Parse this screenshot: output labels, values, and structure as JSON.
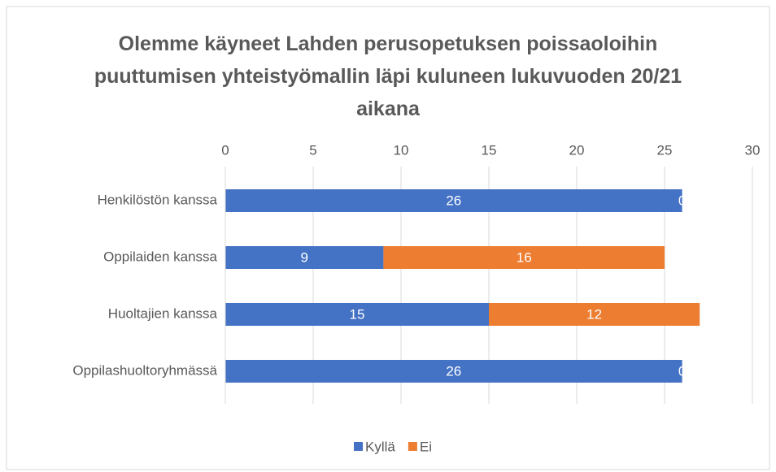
{
  "chart_data": {
    "type": "bar",
    "stacked": true,
    "orientation": "horizontal",
    "title": "Olemme käyneet Lahden perusopetuksen poissaoloihin puuttumisen yhteistyömallin läpi kuluneen lukuvuoden 20/21 aikana",
    "categories": [
      "Henkilöstön kanssa",
      "Oppilaiden kanssa",
      "Huoltajien kanssa",
      "Oppilashuoltoryhmässä"
    ],
    "series": [
      {
        "name": "Kyllä",
        "color": "#4472c4",
        "values": [
          26,
          9,
          15,
          26
        ]
      },
      {
        "name": "Ei",
        "color": "#ed7d31",
        "values": [
          0,
          16,
          12,
          0
        ]
      }
    ],
    "xlim": [
      0,
      30
    ],
    "xticks": [
      0,
      5,
      10,
      15,
      20,
      25,
      30
    ],
    "grid": true,
    "legend": "bottom"
  }
}
